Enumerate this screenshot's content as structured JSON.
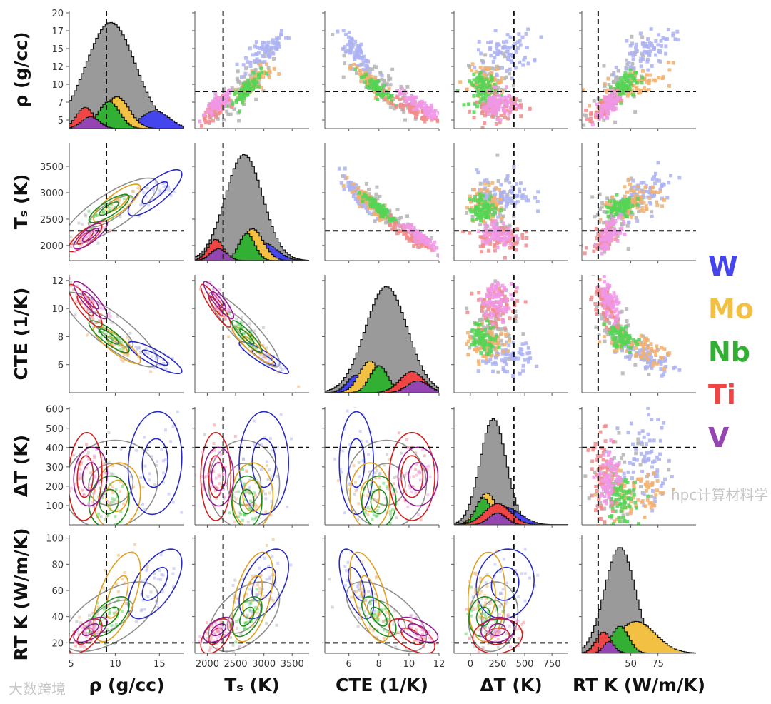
{
  "chart_data": {
    "type": "pairplot",
    "variables": [
      {
        "key": "rho",
        "label": "ρ (g/cc)",
        "range": [
          4.8,
          17.8
        ],
        "yrange": [
          3.8,
          20.3
        ],
        "xticks": [
          5,
          10,
          15
        ],
        "yticks": [
          20,
          17,
          15,
          12,
          10,
          7,
          5
        ],
        "yticks_even": true,
        "threshold": 9
      },
      {
        "key": "Ts",
        "label": "Tₛ (K)",
        "range": [
          1780,
          3800
        ],
        "yrange": [
          1715,
          3946
        ],
        "xticks": [
          2000,
          2500,
          3000,
          3500
        ],
        "yticks": [
          3500,
          3000,
          2500,
          2000
        ],
        "threshold": 2280
      },
      {
        "key": "CTE",
        "label": "CTE (1/K)",
        "range": [
          4.4,
          12.0
        ],
        "yrange": [
          4.0,
          12.4
        ],
        "xticks": [
          6,
          8,
          10,
          12
        ],
        "yticks": [
          12,
          10,
          8,
          6
        ],
        "threshold": null
      },
      {
        "key": "dT",
        "label": "ΔT (K)",
        "range": [
          -150,
          900
        ],
        "yrange": [
          0,
          610
        ],
        "xticks": [
          0,
          250,
          500,
          750
        ],
        "yticks": [
          600,
          500,
          400,
          300,
          200,
          100
        ],
        "threshold": 400
      },
      {
        "key": "K",
        "label": "RT K (W/m/K)",
        "range": [
          5,
          110
        ],
        "yrange": [
          12,
          102
        ],
        "xticks": [
          50,
          75
        ],
        "yticks": [
          100,
          80,
          60,
          40,
          20
        ],
        "threshold": 20
      }
    ],
    "groups": [
      {
        "name": "All",
        "in_legend": false,
        "hist_color": "#9a9a9a",
        "scatter_color": "#b4b4b4",
        "contour_color": "#8f8f8f",
        "mean": [
          9.5,
          2650,
          8.5,
          210,
          40
        ],
        "sd": [
          2.8,
          330,
          1.4,
          120,
          14
        ],
        "hist_peak": 0.9
      },
      {
        "name": "W",
        "hist_color": "#4545ee",
        "scatter_color": "#acb2f2",
        "contour_color": "#2a2ac0",
        "mean": [
          14.5,
          3000,
          6.5,
          320,
          65
        ],
        "sd": [
          1.6,
          230,
          0.6,
          140,
          14
        ],
        "hist_peak": 0.15
      },
      {
        "name": "Mo",
        "hist_color": "#f2c043",
        "scatter_color": "#f2b070",
        "contour_color": "#e0a020",
        "mean": [
          10.2,
          2800,
          7.4,
          150,
          55
        ],
        "sd": [
          1.4,
          190,
          0.7,
          90,
          18
        ],
        "hist_peak": 0.27
      },
      {
        "name": "Nb",
        "hist_color": "#33b033",
        "scatter_color": "#55d455",
        "contour_color": "#208a20",
        "mean": [
          9.3,
          2700,
          8.0,
          120,
          40
        ],
        "sd": [
          1.2,
          140,
          0.6,
          70,
          8
        ],
        "hist_peak": 0.23
      },
      {
        "name": "Ti",
        "hist_color": "#f04545",
        "scatter_color": "#f08c8c",
        "contour_color": "#d02020",
        "mean": [
          6.6,
          2150,
          10.2,
          250,
          25
        ],
        "sd": [
          1.0,
          140,
          0.8,
          120,
          7
        ],
        "hist_peak": 0.18
      },
      {
        "name": "V",
        "hist_color": "#9445b2",
        "scatter_color": "#f096e6",
        "contour_color": "#902090",
        "mean": [
          7.2,
          2200,
          10.6,
          250,
          30
        ],
        "sd": [
          1.0,
          140,
          0.7,
          80,
          5
        ],
        "hist_peak": 0.1
      }
    ],
    "correlation": [
      [
        1,
        0.8,
        -0.85,
        0.1,
        0.6
      ],
      [
        0.8,
        1,
        -0.9,
        0.0,
        0.5
      ],
      [
        -0.85,
        -0.9,
        1,
        0.0,
        -0.6
      ],
      [
        0.1,
        0.0,
        0.0,
        1,
        0.1
      ],
      [
        0.6,
        0.5,
        -0.6,
        0.1,
        1
      ]
    ],
    "legend": {
      "placement": "right",
      "entries": [
        "W",
        "Mo",
        "Nb",
        "Ti",
        "V"
      ]
    }
  },
  "watermarks": {
    "left": "大数跨境",
    "right": "hpc计算材料学"
  }
}
